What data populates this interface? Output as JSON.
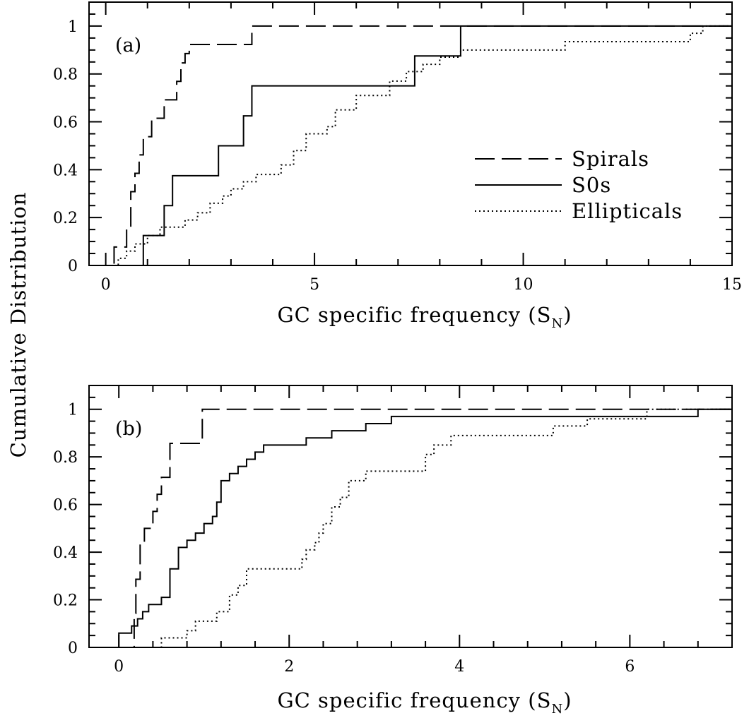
{
  "figure": {
    "ylabel": "Cumulative Distribution"
  },
  "chart_data": [
    {
      "type": "line",
      "panel_label": "(a)",
      "xlabel": "GC specific frequency (S",
      "xlabel_sub": "N",
      "xlabel_close": ")",
      "xlim": [
        -0.4,
        15
      ],
      "ylim": [
        0,
        1.1
      ],
      "xticks": [
        0,
        5,
        10,
        15
      ],
      "xtick_labels": [
        "0",
        "5",
        "10",
        "15"
      ],
      "yticks": [
        0,
        0.2,
        0.4,
        0.6,
        0.8,
        1
      ],
      "ytick_labels": [
        "0",
        "0.2",
        "0.4",
        "0.6",
        "0.8",
        "1"
      ],
      "legend_position": "center-right",
      "series": [
        {
          "name": "Spirals",
          "style": "dashed",
          "x": [
            0.2,
            0.5,
            0.6,
            0.7,
            0.8,
            0.9,
            1.1,
            1.4,
            1.7,
            1.8,
            1.9,
            2.0,
            3.5
          ],
          "y": [
            0.077,
            0.154,
            0.308,
            0.385,
            0.462,
            0.538,
            0.615,
            0.692,
            0.769,
            0.846,
            0.885,
            0.923,
            1.0
          ]
        },
        {
          "name": "S0s",
          "style": "solid",
          "x": [
            0.9,
            1.4,
            1.6,
            2.7,
            3.3,
            3.5,
            7.4,
            8.5
          ],
          "y": [
            0.125,
            0.25,
            0.375,
            0.5,
            0.625,
            0.75,
            0.875,
            1.0
          ]
        },
        {
          "name": "Ellipticals",
          "style": "dotted",
          "x": [
            0.3,
            0.5,
            0.7,
            1.0,
            1.3,
            1.9,
            2.2,
            2.5,
            2.8,
            3.0,
            3.3,
            3.6,
            4.2,
            4.5,
            4.8,
            5.3,
            5.5,
            6.0,
            6.8,
            7.2,
            7.6,
            8.0,
            8.5,
            9.0,
            11.0,
            14.0,
            14.3
          ],
          "y": [
            0.03,
            0.06,
            0.09,
            0.125,
            0.16,
            0.19,
            0.22,
            0.26,
            0.29,
            0.32,
            0.35,
            0.38,
            0.42,
            0.48,
            0.55,
            0.58,
            0.65,
            0.71,
            0.77,
            0.81,
            0.84,
            0.87,
            0.9,
            0.9,
            0.935,
            0.97,
            1.0
          ]
        }
      ]
    },
    {
      "type": "line",
      "panel_label": "(b)",
      "xlabel": "GC specific frequency (S",
      "xlabel_sub": "N",
      "xlabel_close": ")",
      "xlim": [
        -0.35,
        7.2
      ],
      "ylim": [
        0,
        1.1
      ],
      "xticks": [
        0,
        2,
        4,
        6
      ],
      "xtick_labels": [
        "0",
        "2",
        "4",
        "6"
      ],
      "yticks": [
        0,
        0.2,
        0.4,
        0.6,
        0.8,
        1
      ],
      "ytick_labels": [
        "0",
        "0.2",
        "0.4",
        "0.6",
        "0.8",
        "1"
      ],
      "series": [
        {
          "name": "Spirals",
          "style": "dashed",
          "x": [
            0.18,
            0.2,
            0.25,
            0.3,
            0.4,
            0.45,
            0.5,
            0.6,
            0.98,
            6.5
          ],
          "y": [
            0.143,
            0.286,
            0.429,
            0.5,
            0.571,
            0.643,
            0.714,
            0.857,
            1.0,
            1.0
          ]
        },
        {
          "name": "S0s",
          "style": "solid",
          "x": [
            0.0,
            0.15,
            0.22,
            0.28,
            0.35,
            0.5,
            0.6,
            0.7,
            0.8,
            0.9,
            1.0,
            1.1,
            1.15,
            1.2,
            1.3,
            1.4,
            1.5,
            1.6,
            1.7,
            1.8,
            2.0,
            2.2,
            2.5,
            2.9,
            3.2,
            3.6,
            6.8
          ],
          "y": [
            0.06,
            0.09,
            0.12,
            0.15,
            0.18,
            0.21,
            0.33,
            0.42,
            0.45,
            0.48,
            0.52,
            0.55,
            0.61,
            0.7,
            0.73,
            0.76,
            0.79,
            0.82,
            0.85,
            0.85,
            0.85,
            0.88,
            0.91,
            0.94,
            0.97,
            0.97,
            1.0
          ]
        },
        {
          "name": "Ellipticals",
          "style": "dotted",
          "x": [
            0.5,
            0.8,
            0.9,
            1.15,
            1.3,
            1.4,
            1.5,
            2.15,
            2.2,
            2.3,
            2.35,
            2.4,
            2.5,
            2.6,
            2.7,
            2.9,
            3.6,
            3.7,
            3.9,
            5.1,
            5.5,
            5.8,
            6.2,
            6.5
          ],
          "y": [
            0.04,
            0.07,
            0.11,
            0.15,
            0.22,
            0.26,
            0.33,
            0.37,
            0.41,
            0.44,
            0.48,
            0.52,
            0.59,
            0.63,
            0.7,
            0.74,
            0.81,
            0.85,
            0.89,
            0.93,
            0.96,
            0.96,
            1.0,
            1.0
          ]
        }
      ]
    }
  ]
}
